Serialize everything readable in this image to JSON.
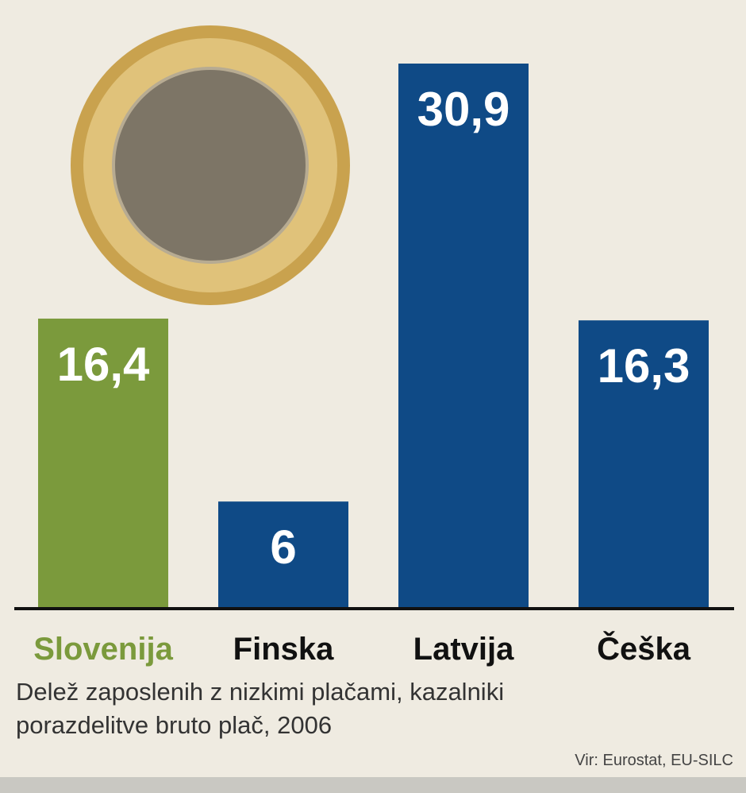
{
  "chart_data": {
    "type": "bar",
    "subtitle": "Delež zaposlenih z nizkimi plačami, kazalniki porazdelitve bruto plač, 2006",
    "source": "Vir: Eurostat, EU-SILC",
    "categories": [
      "Slovenija",
      "Finska",
      "Latvija",
      "Češka"
    ],
    "values": [
      16.4,
      6,
      30.9,
      16.3
    ],
    "value_labels": [
      "16,4",
      "6",
      "30,9",
      "16,3"
    ],
    "colors": [
      "#7b9a3c",
      "#0f4a86",
      "#0f4a86",
      "#0f4a86"
    ],
    "label_colors": [
      "#7b9a3c",
      "#111111",
      "#111111",
      "#111111"
    ]
  }
}
